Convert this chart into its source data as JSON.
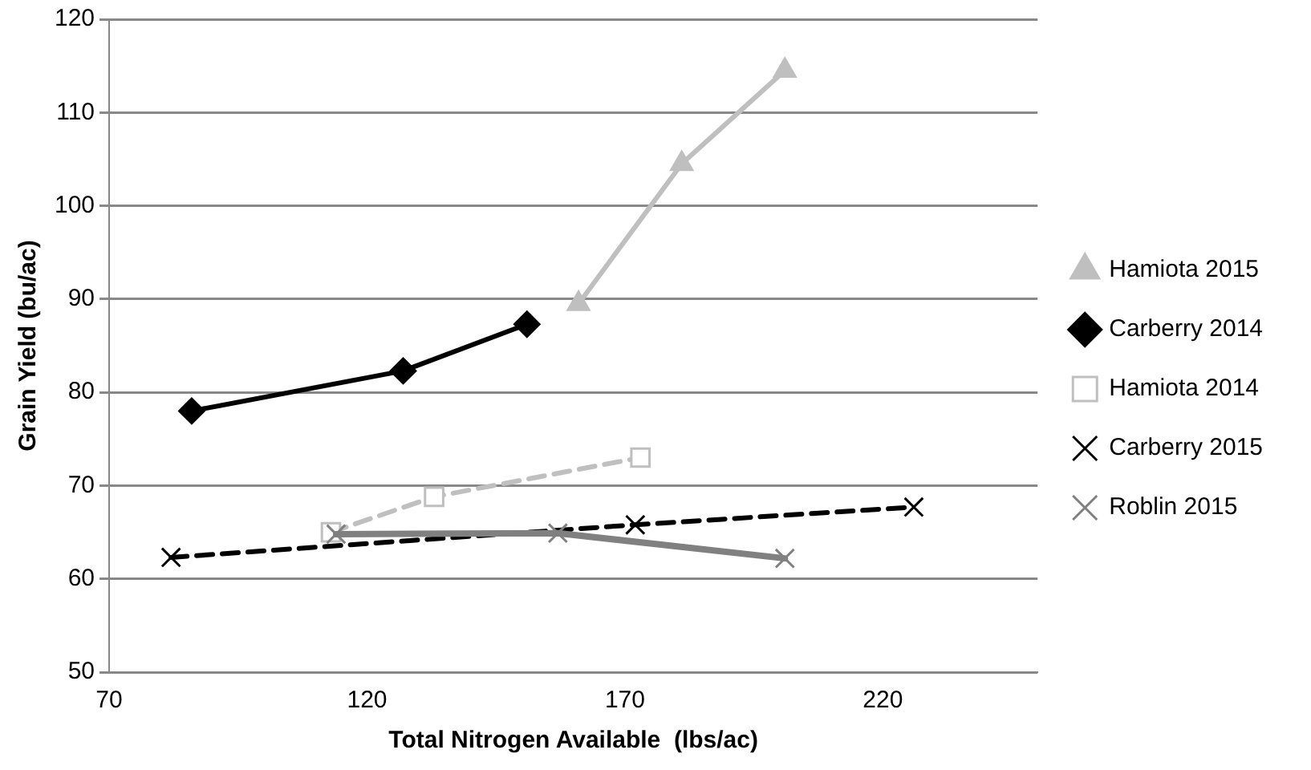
{
  "chart_data": {
    "type": "line",
    "xlabel": "Total Nitrogen Available  (lbs/ac)",
    "ylabel": "Grain Yield (bu/ac)",
    "xlim": [
      70,
      250
    ],
    "xticks": [
      70,
      120,
      170,
      220
    ],
    "ylim": [
      50,
      120
    ],
    "yticks": [
      50,
      60,
      70,
      80,
      90,
      100,
      110,
      120
    ],
    "grid": "y",
    "legend": "right",
    "series": [
      {
        "name": "Hamiota 2015",
        "color": "#bfbfbf",
        "marker": "triangle",
        "line_style": "solid",
        "x": [
          161,
          181,
          201
        ],
        "values": [
          89.5,
          104.5,
          114.5
        ]
      },
      {
        "name": "Carberry 2014",
        "color": "#000000",
        "marker": "diamond",
        "line_style": "solid",
        "x": [
          86,
          127,
          151
        ],
        "values": [
          78,
          82.3,
          87.3
        ]
      },
      {
        "name": "Hamiota 2014",
        "color": "#bfbfbf",
        "marker": "square",
        "line_style": "dashed",
        "x": [
          113,
          133,
          173
        ],
        "values": [
          65,
          68.8,
          73
        ]
      },
      {
        "name": "Carberry 2015",
        "color": "#000000",
        "marker": "cross",
        "line_style": "dashed",
        "x": [
          82,
          172,
          226
        ],
        "values": [
          62.3,
          65.8,
          67.7
        ]
      },
      {
        "name": "Roblin 2015",
        "color": "#808080",
        "marker": "cross",
        "line_style": "solid",
        "x": [
          114,
          157,
          201
        ],
        "values": [
          64.8,
          64.9,
          62.2
        ]
      }
    ]
  }
}
